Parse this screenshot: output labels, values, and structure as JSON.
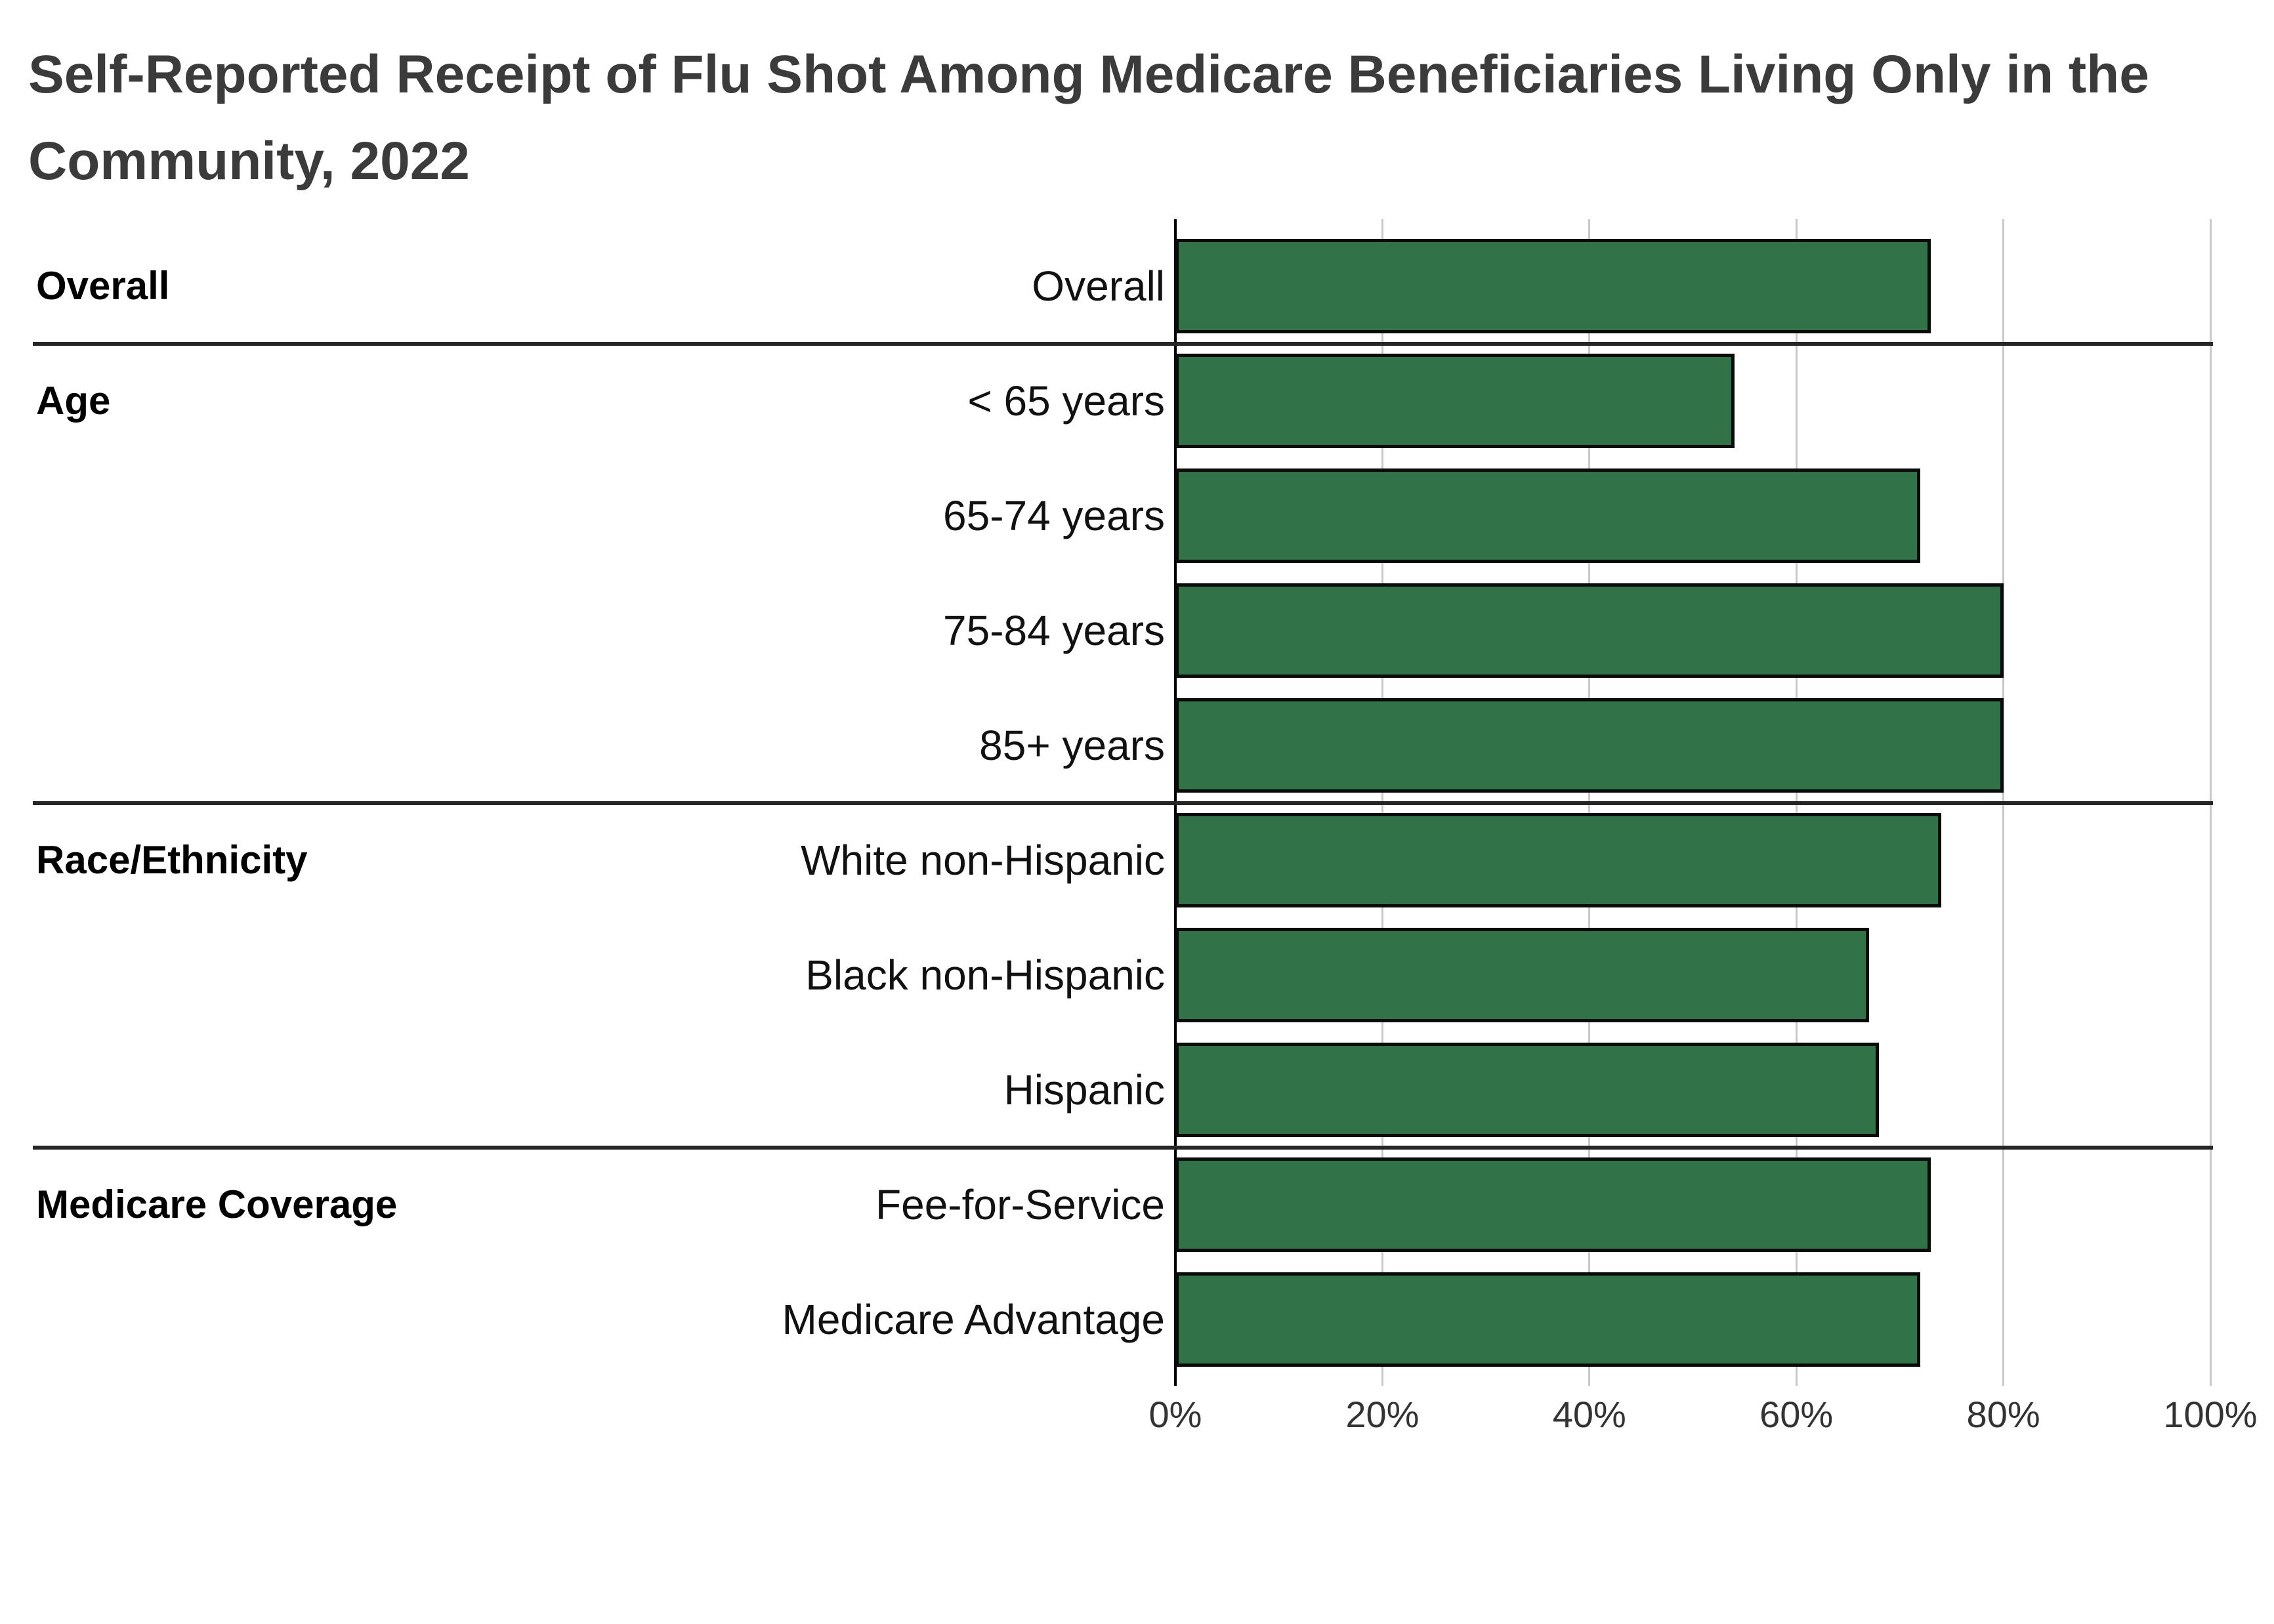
{
  "title": "Self-Reported Receipt of Flu Shot Among Medicare Beneficiaries Living Only in the Community, 2022",
  "title_lines": [
    "Self-Reported Receipt of Flu Shot Among Medicare Beneficiaries Living Only in the",
    "Community, 2022"
  ],
  "chart_data": {
    "type": "bar",
    "orientation": "horizontal",
    "title": "Self-Reported Receipt of Flu Shot Among Medicare Beneficiaries Living Only in the Community, 2022",
    "xlabel": "",
    "ylabel": "",
    "unit": "%",
    "xlim": [
      0,
      100
    ],
    "grid": true,
    "legend_position": "none",
    "x_ticks": [
      {
        "label": "0%",
        "value": 0
      },
      {
        "label": "20%",
        "value": 20
      },
      {
        "label": "40%",
        "value": 40
      },
      {
        "label": "60%",
        "value": 60
      },
      {
        "label": "80%",
        "value": 80
      },
      {
        "label": "100%",
        "value": 100
      }
    ],
    "groups": [
      {
        "label": "Overall",
        "rows": [
          {
            "category": "Overall",
            "value": 73
          }
        ]
      },
      {
        "label": "Age",
        "rows": [
          {
            "category": "< 65 years",
            "value": 54
          },
          {
            "category": "65-74 years",
            "value": 72
          },
          {
            "category": "75-84 years",
            "value": 80
          },
          {
            "category": "85+ years",
            "value": 80
          }
        ]
      },
      {
        "label": "Race/Ethnicity",
        "rows": [
          {
            "category": "White non-Hispanic",
            "value": 74
          },
          {
            "category": "Black non-Hispanic",
            "value": 67
          },
          {
            "category": "Hispanic",
            "value": 68
          }
        ]
      },
      {
        "label": "Medicare Coverage",
        "rows": [
          {
            "category": "Fee-for-Service",
            "value": 73
          },
          {
            "category": "Medicare Advantage",
            "value": 72
          }
        ]
      }
    ],
    "colors": {
      "background": "#ffffff",
      "bar_fill": "#317249",
      "bar_outline": "#0b0b0b",
      "gridline": "#c9c9c9",
      "axis_line": "#000000",
      "separator": "#262626",
      "title_text": "#3b3b3b",
      "group_label_text": "#000000",
      "row_label_text": "#111111",
      "tick_text": "#333333"
    }
  }
}
